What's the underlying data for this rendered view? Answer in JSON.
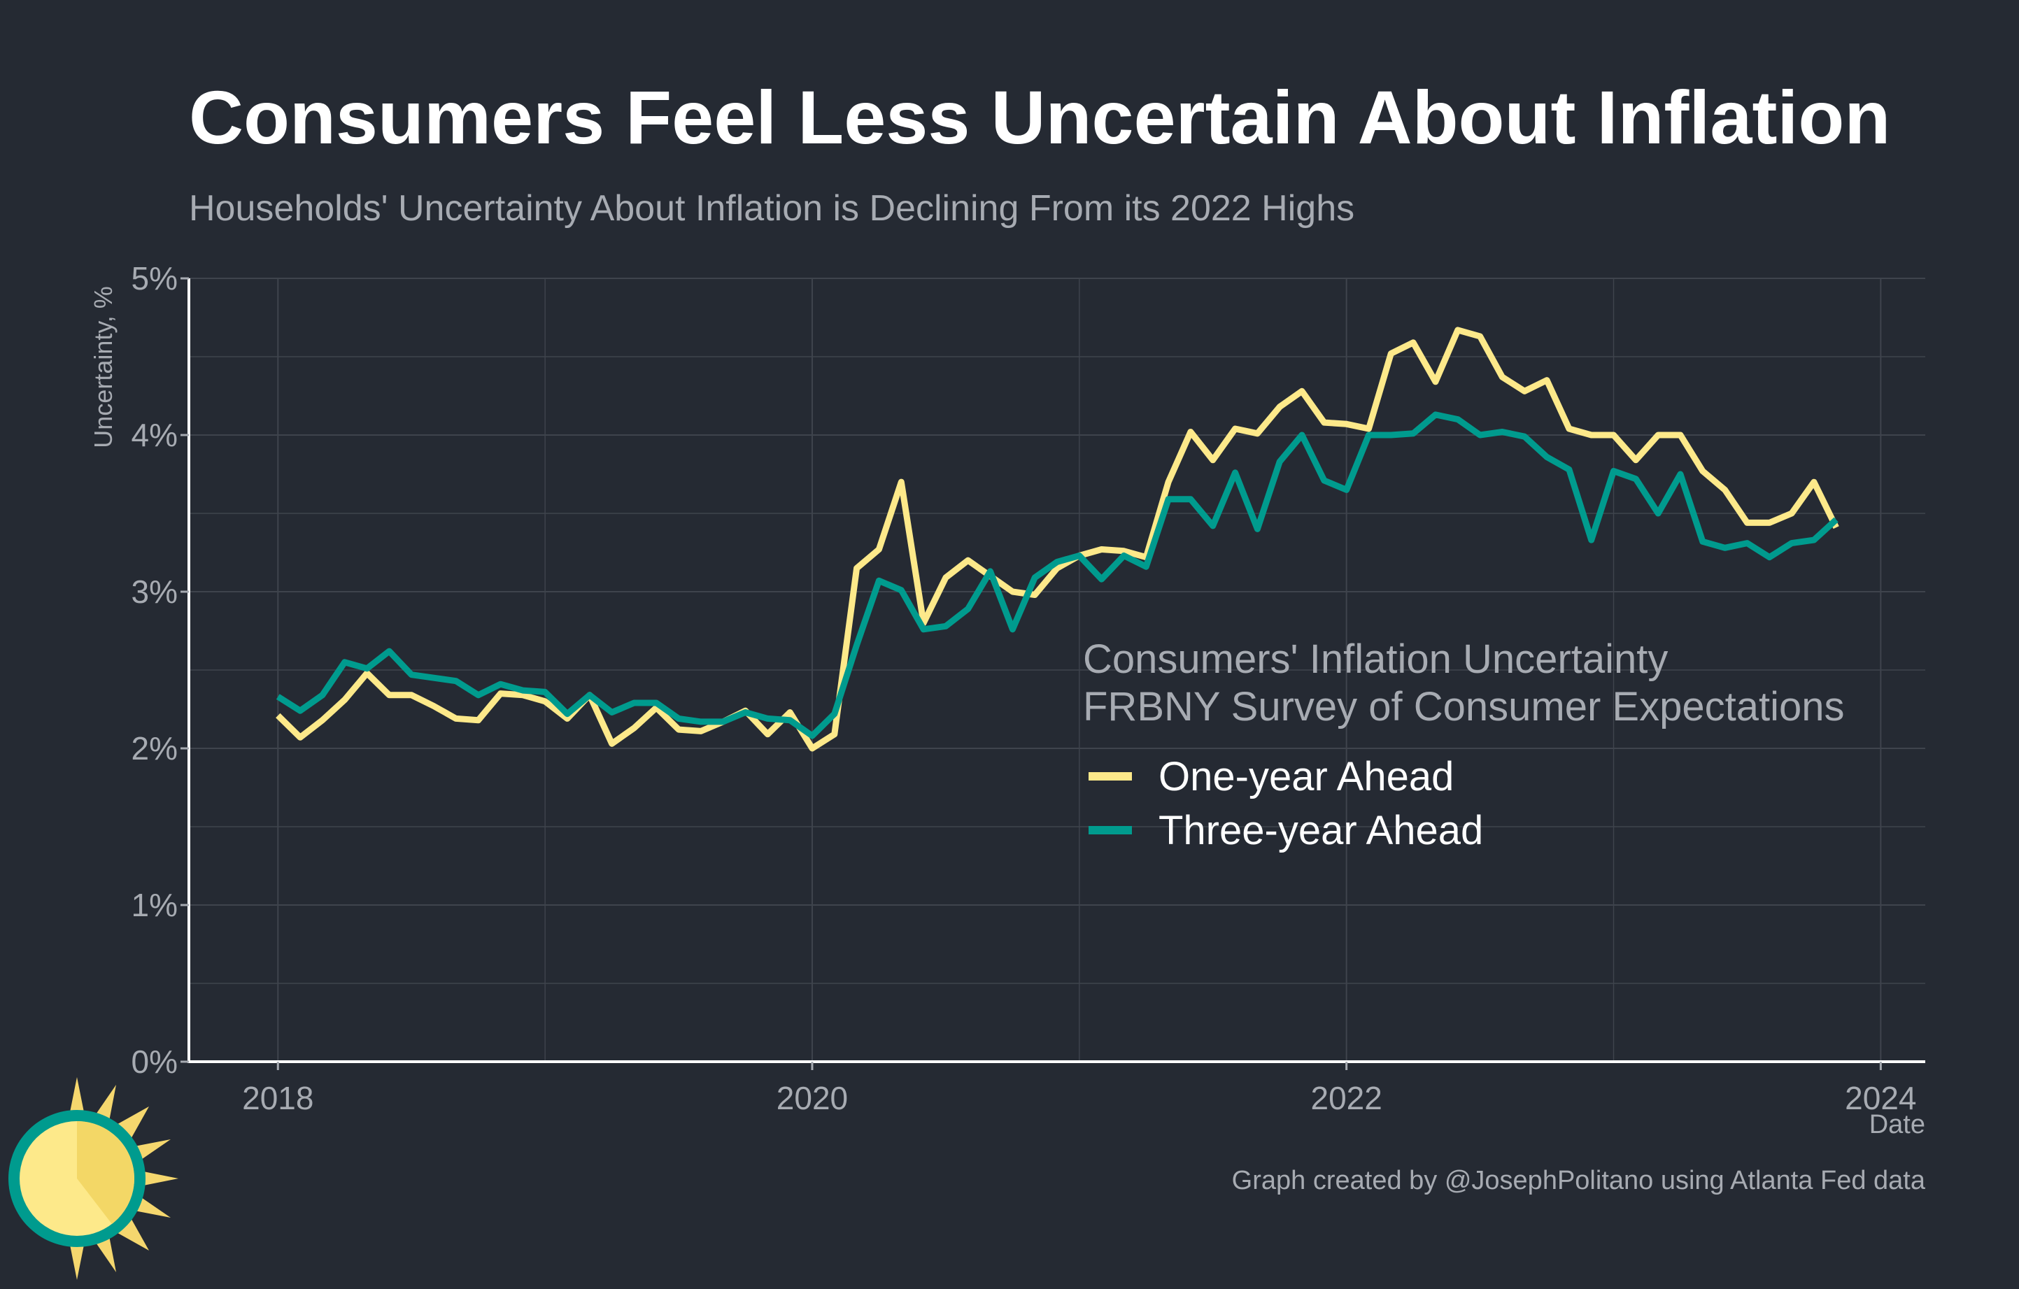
{
  "chart_data": {
    "type": "line",
    "title": "Consumers Feel Less Uncertain About Inflation",
    "subtitle": "Households' Uncertainty About Inflation is Declining From its 2022 Highs",
    "xlabel": "Date",
    "ylabel": "Uncertainty, %",
    "x_ticks": [
      "2018",
      "2020",
      "2022",
      "2024"
    ],
    "y_ticks": [
      "0%",
      "1%",
      "2%",
      "3%",
      "4%",
      "5%"
    ],
    "xlim": [
      "2017-09",
      "2024-03"
    ],
    "ylim": [
      0,
      5
    ],
    "grid": true,
    "legend_title": [
      "Consumers' Inflation Uncertainty",
      "FRBNY Survey of Consumer Expectations"
    ],
    "legend_position": "center-right",
    "caption": "Graph created by @JosephPolitano using Atlanta Fed data",
    "colors": {
      "background": "#252a33",
      "grid": "#3f444d",
      "axis": "#ffffff",
      "one_year": "#fde98a",
      "three_year": "#009b8e"
    },
    "x": [
      "2018-01",
      "2018-02",
      "2018-03",
      "2018-04",
      "2018-05",
      "2018-06",
      "2018-07",
      "2018-08",
      "2018-09",
      "2018-10",
      "2018-11",
      "2018-12",
      "2019-01",
      "2019-02",
      "2019-03",
      "2019-04",
      "2019-05",
      "2019-06",
      "2019-07",
      "2019-08",
      "2019-09",
      "2019-10",
      "2019-11",
      "2019-12",
      "2020-01",
      "2020-02",
      "2020-03",
      "2020-04",
      "2020-05",
      "2020-06",
      "2020-07",
      "2020-08",
      "2020-09",
      "2020-10",
      "2020-11",
      "2020-12",
      "2021-01",
      "2021-02",
      "2021-03",
      "2021-04",
      "2021-05",
      "2021-06",
      "2021-07",
      "2021-08",
      "2021-09",
      "2021-10",
      "2021-11",
      "2021-12",
      "2022-01",
      "2022-02",
      "2022-03",
      "2022-04",
      "2022-05",
      "2022-06",
      "2022-07",
      "2022-08",
      "2022-09",
      "2022-10",
      "2022-11",
      "2022-12",
      "2023-01",
      "2023-02",
      "2023-03",
      "2023-04",
      "2023-05",
      "2023-06",
      "2023-07",
      "2023-08",
      "2023-09",
      "2023-10",
      "2023-11"
    ],
    "series": [
      {
        "name": "One-year Ahead",
        "color": "#fde98a",
        "values": [
          2.21,
          2.07,
          2.18,
          2.31,
          2.48,
          2.34,
          2.34,
          2.27,
          2.19,
          2.18,
          2.35,
          2.34,
          2.3,
          2.19,
          2.34,
          2.03,
          2.13,
          2.26,
          2.12,
          2.11,
          2.17,
          2.24,
          2.09,
          2.23,
          2.0,
          2.09,
          3.15,
          3.27,
          3.7,
          2.8,
          3.09,
          3.2,
          3.1,
          3.0,
          2.98,
          3.15,
          3.23,
          3.27,
          3.26,
          3.22,
          3.7,
          4.02,
          3.84,
          4.04,
          4.01,
          4.18,
          4.28,
          4.08,
          4.07,
          4.04,
          4.52,
          4.59,
          4.34,
          4.67,
          4.63,
          4.37,
          4.28,
          4.35,
          4.04,
          4.0,
          4.0,
          3.84,
          4.0,
          4.0,
          3.77,
          3.65,
          3.44,
          3.44,
          3.5,
          3.7,
          3.41
        ]
      },
      {
        "name": "Three-year Ahead",
        "color": "#009b8e",
        "values": [
          2.33,
          2.24,
          2.34,
          2.55,
          2.51,
          2.62,
          2.47,
          2.45,
          2.43,
          2.34,
          2.41,
          2.37,
          2.36,
          2.22,
          2.34,
          2.23,
          2.29,
          2.29,
          2.19,
          2.17,
          2.17,
          2.23,
          2.19,
          2.18,
          2.08,
          2.22,
          2.66,
          3.07,
          3.01,
          2.76,
          2.78,
          2.89,
          3.13,
          2.76,
          3.09,
          3.19,
          3.23,
          3.08,
          3.23,
          3.16,
          3.59,
          3.59,
          3.42,
          3.76,
          3.4,
          3.83,
          4.0,
          3.71,
          3.65,
          4.0,
          4.0,
          4.01,
          4.13,
          4.1,
          4.0,
          4.02,
          3.99,
          3.86,
          3.78,
          3.33,
          3.77,
          3.72,
          3.5,
          3.75,
          3.32,
          3.28,
          3.31,
          3.22,
          3.31,
          3.33,
          3.46
        ]
      }
    ]
  }
}
